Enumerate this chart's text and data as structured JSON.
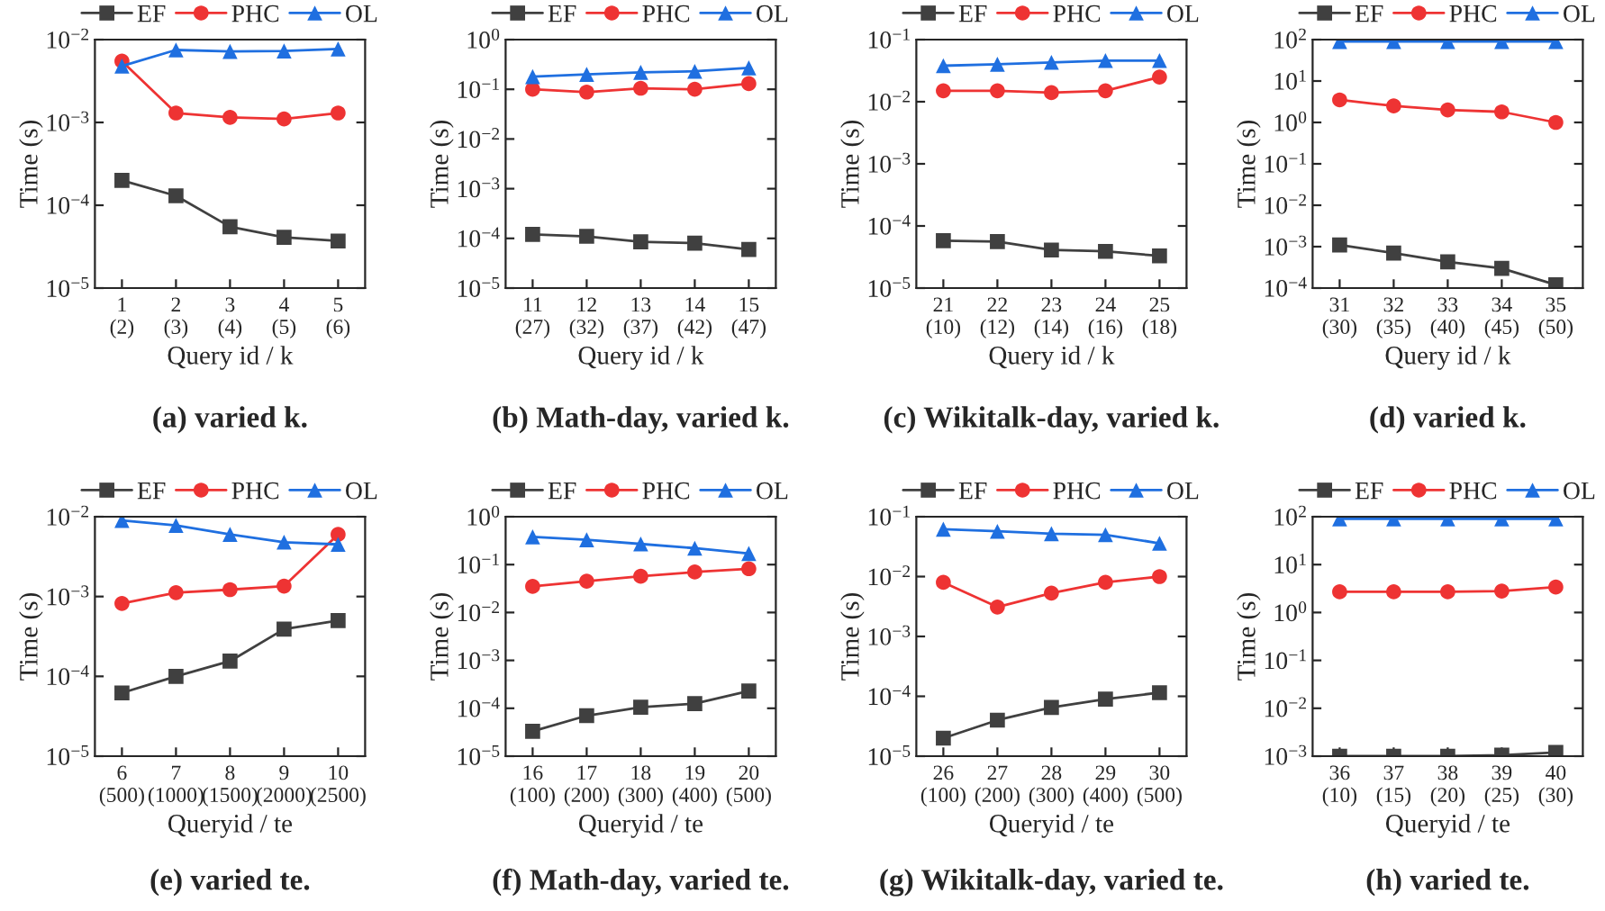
{
  "chart_data": [
    {
      "type": "line",
      "title": "(a) varied k.",
      "xlabel": "Query id / k",
      "ylabel": "Time (s)",
      "categories": [
        "1\n(2)",
        "2\n(3)",
        "3\n(4)",
        "4\n(5)",
        "5\n(6)"
      ],
      "log": "y",
      "ylim": [
        1e-05,
        0.01
      ],
      "yticks": [
        {
          "value": 1e-05,
          "label": "10$^{−5}$"
        },
        {
          "value": 0.0001,
          "label": "10$^{−4}$"
        },
        {
          "value": 0.001,
          "label": "10$^{−3}$"
        },
        {
          "value": 0.01,
          "label": "10$^{−2}$"
        }
      ],
      "legend": "top",
      "grid": false,
      "series": [
        {
          "name": "EF",
          "color": "#404040",
          "marker": "square",
          "values": [
            0.0002,
            0.00013,
            5.5e-05,
            4.1e-05,
            3.7e-05
          ]
        },
        {
          "name": "PHC",
          "color": "#ee3333",
          "marker": "circle",
          "values": [
            0.0055,
            0.0013,
            0.00115,
            0.0011,
            0.0013
          ]
        },
        {
          "name": "OL",
          "color": "#1f6fe0",
          "marker": "triangle",
          "values": [
            0.0048,
            0.0075,
            0.0072,
            0.0073,
            0.0077
          ]
        }
      ]
    },
    {
      "type": "line",
      "title": "(b) Math-day, varied k.",
      "xlabel": "Query id / k",
      "ylabel": "Time (s)",
      "categories": [
        "11\n(27)",
        "12\n(32)",
        "13\n(37)",
        "14\n(42)",
        "15\n(47)"
      ],
      "log": "y",
      "ylim": [
        1e-05,
        1
      ],
      "yticks": [
        {
          "value": 1e-05,
          "label": "10$^{−5}$"
        },
        {
          "value": 0.0001,
          "label": "10$^{−4}$"
        },
        {
          "value": 0.001,
          "label": "10$^{−3}$"
        },
        {
          "value": 0.01,
          "label": "10$^{−2}$"
        },
        {
          "value": 0.1,
          "label": "10$^{−1}$"
        },
        {
          "value": 1,
          "label": "10$^{0}$"
        }
      ],
      "legend": "top",
      "grid": false,
      "series": [
        {
          "name": "EF",
          "color": "#404040",
          "marker": "square",
          "values": [
            0.00012,
            0.00011,
            8.5e-05,
            8e-05,
            6e-05
          ]
        },
        {
          "name": "PHC",
          "color": "#ee3333",
          "marker": "circle",
          "values": [
            0.1,
            0.088,
            0.105,
            0.1,
            0.13
          ]
        },
        {
          "name": "OL",
          "color": "#1f6fe0",
          "marker": "triangle",
          "values": [
            0.18,
            0.2,
            0.22,
            0.23,
            0.27
          ]
        }
      ]
    },
    {
      "type": "line",
      "title": "(c) Wikitalk-day, varied k.",
      "xlabel": "Query id / k",
      "ylabel": "Time (s)",
      "categories": [
        "21\n(10)",
        "22\n(12)",
        "23\n(14)",
        "24\n(16)",
        "25\n(18)"
      ],
      "log": "y",
      "ylim": [
        1e-05,
        0.1
      ],
      "yticks": [
        {
          "value": 1e-05,
          "label": "10$^{−5}$"
        },
        {
          "value": 0.0001,
          "label": "10$^{−4}$"
        },
        {
          "value": 0.001,
          "label": "10$^{−3}$"
        },
        {
          "value": 0.01,
          "label": "10$^{−2}$"
        },
        {
          "value": 0.1,
          "label": "10$^{−1}$"
        }
      ],
      "legend": "top",
      "grid": false,
      "series": [
        {
          "name": "EF",
          "color": "#404040",
          "marker": "square",
          "values": [
            5.8e-05,
            5.6e-05,
            4.1e-05,
            3.9e-05,
            3.3e-05
          ]
        },
        {
          "name": "PHC",
          "color": "#ee3333",
          "marker": "circle",
          "values": [
            0.015,
            0.015,
            0.014,
            0.015,
            0.025
          ]
        },
        {
          "name": "OL",
          "color": "#1f6fe0",
          "marker": "triangle",
          "values": [
            0.038,
            0.04,
            0.043,
            0.046,
            0.046
          ]
        }
      ]
    },
    {
      "type": "line",
      "title": "(d) varied k.",
      "xlabel": "Query id / k",
      "ylabel": "Time (s)",
      "categories": [
        "31\n(30)",
        "32\n(35)",
        "33\n(40)",
        "34\n(45)",
        "35\n(50)"
      ],
      "log": "y",
      "ylim": [
        0.0001,
        100
      ],
      "yticks": [
        {
          "value": 0.0001,
          "label": "10$^{−4}$"
        },
        {
          "value": 0.001,
          "label": "10$^{−3}$"
        },
        {
          "value": 0.01,
          "label": "10$^{−2}$"
        },
        {
          "value": 0.1,
          "label": "10$^{−1}$"
        },
        {
          "value": 1,
          "label": "10$^{0}$"
        },
        {
          "value": 10,
          "label": "10$^{1}$"
        },
        {
          "value": 100,
          "label": "10$^{2}$"
        }
      ],
      "legend": "top",
      "grid": false,
      "series": [
        {
          "name": "EF",
          "color": "#404040",
          "marker": "square",
          "values": [
            0.0011,
            0.0007,
            0.00043,
            0.0003,
            0.00012
          ]
        },
        {
          "name": "PHC",
          "color": "#ee3333",
          "marker": "circle",
          "values": [
            3.5,
            2.5,
            2,
            1.8,
            1
          ]
        },
        {
          "name": "OL",
          "color": "#1f6fe0",
          "marker": "triangle",
          "values": [
            90,
            90,
            90,
            90,
            90
          ]
        }
      ]
    },
    {
      "type": "line",
      "title": "(e) varied te.",
      "xlabel": "Queryid / te",
      "ylabel": "Time (s)",
      "categories": [
        "6\n(500)",
        "7\n(1000)",
        "8\n(1500)",
        "9\n(2000)",
        "10\n(2500)"
      ],
      "log": "y",
      "ylim": [
        1e-05,
        0.01
      ],
      "yticks": [
        {
          "value": 1e-05,
          "label": "10$^{−5}$"
        },
        {
          "value": 0.0001,
          "label": "10$^{−4}$"
        },
        {
          "value": 0.001,
          "label": "10$^{−3}$"
        },
        {
          "value": 0.01,
          "label": "10$^{−2}$"
        }
      ],
      "legend": "top",
      "grid": false,
      "series": [
        {
          "name": "EF",
          "color": "#404040",
          "marker": "square",
          "values": [
            6.2e-05,
            0.0001,
            0.000155,
            0.00039,
            0.0005
          ]
        },
        {
          "name": "PHC",
          "color": "#ee3333",
          "marker": "circle",
          "values": [
            0.00082,
            0.00112,
            0.00122,
            0.00135,
            0.006
          ]
        },
        {
          "name": "OL",
          "color": "#1f6fe0",
          "marker": "triangle",
          "values": [
            0.009,
            0.0078,
            0.006,
            0.0048,
            0.0045
          ]
        }
      ]
    },
    {
      "type": "line",
      "title": "(f) Math-day, varied te.",
      "xlabel": "Queryid / te",
      "ylabel": "Time (s)",
      "categories": [
        "16\n(100)",
        "17\n(200)",
        "18\n(300)",
        "19\n(400)",
        "20\n(500)"
      ],
      "log": "y",
      "ylim": [
        1e-05,
        1
      ],
      "yticks": [
        {
          "value": 1e-05,
          "label": "10$^{−5}$"
        },
        {
          "value": 0.0001,
          "label": "10$^{−4}$"
        },
        {
          "value": 0.001,
          "label": "10$^{−3}$"
        },
        {
          "value": 0.01,
          "label": "10$^{−2}$"
        },
        {
          "value": 0.1,
          "label": "10$^{−1}$"
        },
        {
          "value": 1,
          "label": "10$^{0}$"
        }
      ],
      "legend": "top",
      "grid": false,
      "series": [
        {
          "name": "EF",
          "color": "#404040",
          "marker": "square",
          "values": [
            3.3e-05,
            7e-05,
            0.000105,
            0.000125,
            0.00023
          ]
        },
        {
          "name": "PHC",
          "color": "#ee3333",
          "marker": "circle",
          "values": [
            0.035,
            0.045,
            0.057,
            0.07,
            0.082
          ]
        },
        {
          "name": "OL",
          "color": "#1f6fe0",
          "marker": "triangle",
          "values": [
            0.38,
            0.33,
            0.27,
            0.22,
            0.17
          ]
        }
      ]
    },
    {
      "type": "line",
      "title": "(g) Wikitalk-day, varied te.",
      "xlabel": "Queryid / te",
      "ylabel": "Time (s)",
      "categories": [
        "26\n(100)",
        "27\n(200)",
        "28\n(300)",
        "29\n(400)",
        "30\n(500)"
      ],
      "log": "y",
      "ylim": [
        1e-05,
        0.1
      ],
      "yticks": [
        {
          "value": 1e-05,
          "label": "10$^{−5}$"
        },
        {
          "value": 0.0001,
          "label": "10$^{−4}$"
        },
        {
          "value": 0.001,
          "label": "10$^{−3}$"
        },
        {
          "value": 0.01,
          "label": "10$^{−2}$"
        },
        {
          "value": 0.1,
          "label": "10$^{−1}$"
        }
      ],
      "legend": "top",
      "grid": false,
      "series": [
        {
          "name": "EF",
          "color": "#404040",
          "marker": "square",
          "values": [
            2e-05,
            4e-05,
            6.5e-05,
            9e-05,
            0.000115
          ]
        },
        {
          "name": "PHC",
          "color": "#ee3333",
          "marker": "circle",
          "values": [
            0.008,
            0.0031,
            0.0053,
            0.008,
            0.01
          ]
        },
        {
          "name": "OL",
          "color": "#1f6fe0",
          "marker": "triangle",
          "values": [
            0.062,
            0.057,
            0.052,
            0.05,
            0.036
          ]
        }
      ]
    },
    {
      "type": "line",
      "title": "(h) varied te.",
      "xlabel": "Queryid / te",
      "ylabel": "Time (s)",
      "categories": [
        "36\n(10)",
        "37\n(15)",
        "38\n(20)",
        "39\n(25)",
        "40\n(30)"
      ],
      "log": "y",
      "ylim": [
        0.001,
        100
      ],
      "yticks": [
        {
          "value": 0.001,
          "label": "10$^{−3}$"
        },
        {
          "value": 0.01,
          "label": "10$^{−2}$"
        },
        {
          "value": 0.1,
          "label": "10$^{−1}$"
        },
        {
          "value": 1,
          "label": "10$^{0}$"
        },
        {
          "value": 10,
          "label": "10$^{1}$"
        },
        {
          "value": 100,
          "label": "10$^{2}$"
        }
      ],
      "legend": "top",
      "grid": false,
      "series": [
        {
          "name": "EF",
          "color": "#404040",
          "marker": "square",
          "values": [
            0.001,
            0.001,
            0.001,
            0.00105,
            0.0012
          ]
        },
        {
          "name": "PHC",
          "color": "#ee3333",
          "marker": "circle",
          "values": [
            2.7,
            2.7,
            2.7,
            2.8,
            3.4
          ]
        },
        {
          "name": "OL",
          "color": "#1f6fe0",
          "marker": "triangle",
          "values": [
            90,
            90,
            90,
            90,
            90
          ]
        }
      ]
    }
  ]
}
